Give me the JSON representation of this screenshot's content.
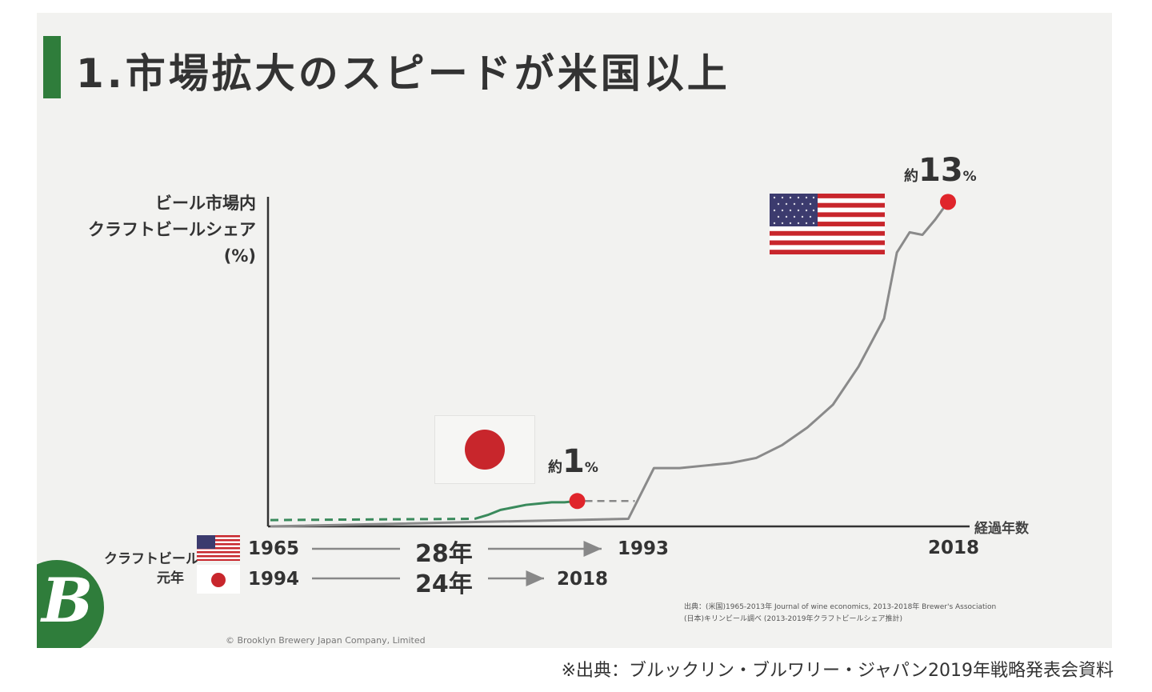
{
  "title": "1.市場拡大のスピードが米国以上",
  "footnote": "※出典：ブルックリン・ブルワリー・ジャパン2019年戦略発表会資料",
  "copyright": "© Brooklyn Brewery Japan Company, Limited",
  "source_lines": [
    "出典：(米国)1965-2013年 Journal of wine economics, 2013-2018年 Brewer's Association",
    "(日本)キリンビール調べ (2013-2019年クラフトビールシェア推計)"
  ],
  "row_label": [
    "クラフトビール",
    "元年"
  ],
  "timeline": [
    {
      "country": "us",
      "start": "1965",
      "duration": "28年",
      "end": "1993"
    },
    {
      "country": "jp",
      "start": "1994",
      "duration": "24年",
      "end": "2018"
    }
  ],
  "icons": {
    "us_flag": "us-flag-icon",
    "jp_flag": "japan-flag-icon",
    "logo": "brooklyn-b-logo"
  },
  "colors": {
    "us_line": "#8a8a8a",
    "jp_line": "#3a8a5c",
    "marker": "#e0252b",
    "title_bar": "#2f7d3b"
  },
  "chart_data": {
    "type": "line",
    "ylabel": [
      "ビール市場内",
      "クラフトビールシェア",
      "(%)"
    ],
    "xlabel": "経過年数",
    "x_unit": "years since craft beer year one",
    "xlim": [
      0,
      53
    ],
    "ylim": [
      0,
      13
    ],
    "x_ticks": [
      {
        "x": 28,
        "label": "1993"
      },
      {
        "x": 53,
        "label": "2018"
      }
    ],
    "series": [
      {
        "country": "us",
        "style": "solid",
        "x": [
          0,
          28,
          30,
          32,
          34,
          36,
          38,
          40,
          42,
          44,
          46,
          48,
          49,
          50,
          51,
          52,
          53
        ],
        "y": [
          0,
          0.3,
          2.3,
          2.3,
          2.4,
          2.5,
          2.7,
          3.2,
          3.9,
          4.8,
          6.3,
          8.2,
          10.8,
          11.6,
          11.5,
          12.1,
          12.8
        ]
      },
      {
        "country": "jp",
        "style": "solid",
        "x": [
          0,
          16,
          17,
          18,
          19,
          20,
          21,
          22,
          23,
          24
        ],
        "y": [
          0.25,
          0.3,
          0.45,
          0.65,
          0.75,
          0.85,
          0.9,
          0.95,
          0.95,
          1.0
        ]
      }
    ],
    "annotations": [
      {
        "country": "us",
        "prefix": "約",
        "value": "13",
        "unit": "%",
        "x": 53,
        "y": 12.8
      },
      {
        "country": "jp",
        "prefix": "約",
        "value": "1",
        "unit": "%",
        "x": 24,
        "y": 1.0
      }
    ]
  }
}
